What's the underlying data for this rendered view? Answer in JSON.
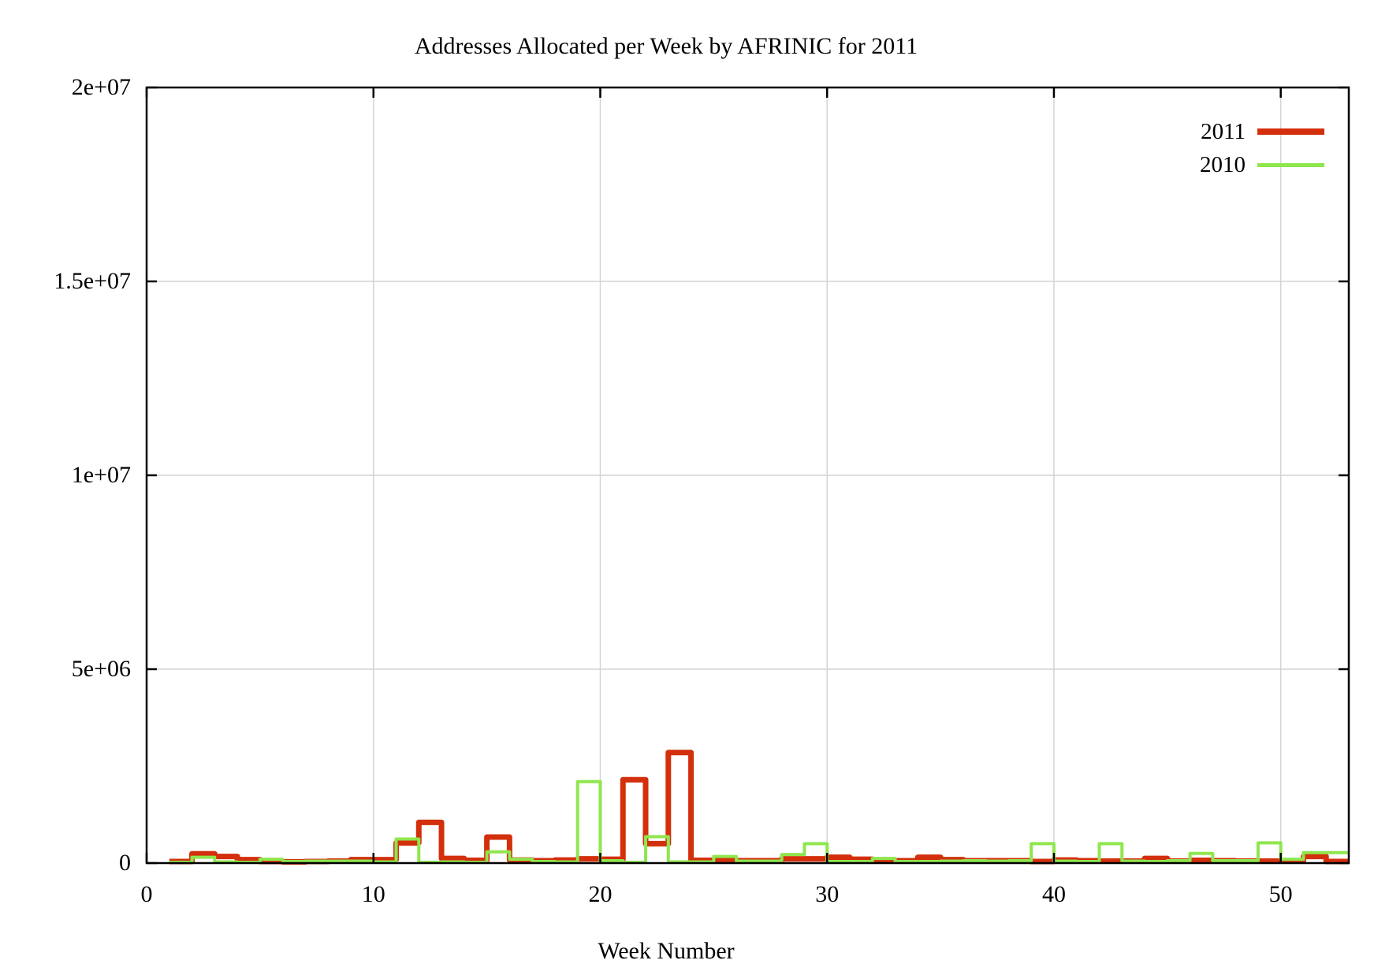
{
  "chart_data": {
    "type": "line",
    "subtype": "steps",
    "title": "Addresses Allocated per Week by AFRINIC for 2011",
    "xlabel": "Week Number",
    "ylabel": "",
    "xlim": [
      0,
      53
    ],
    "ylim": [
      0,
      20000000
    ],
    "grid": true,
    "legend_position": "top-right",
    "background": "#ffffff",
    "grid_color": "#d4d4d4",
    "border_color": "#000000",
    "xticks": [
      {
        "value": 0,
        "label": "0"
      },
      {
        "value": 10,
        "label": "10"
      },
      {
        "value": 20,
        "label": "20"
      },
      {
        "value": 30,
        "label": "30"
      },
      {
        "value": 40,
        "label": "40"
      },
      {
        "value": 50,
        "label": "50"
      }
    ],
    "yticks": [
      {
        "value": 0,
        "label": "0"
      },
      {
        "value": 5000000,
        "label": "5e+06"
      },
      {
        "value": 10000000,
        "label": "1e+07"
      },
      {
        "value": 15000000,
        "label": "1.5e+07"
      },
      {
        "value": 20000000,
        "label": "2e+07"
      }
    ],
    "weeks": [
      1,
      2,
      3,
      4,
      5,
      6,
      7,
      8,
      9,
      10,
      11,
      12,
      13,
      14,
      15,
      16,
      17,
      18,
      19,
      20,
      21,
      22,
      23,
      24,
      25,
      26,
      27,
      28,
      29,
      30,
      31,
      32,
      33,
      34,
      35,
      36,
      37,
      38,
      39,
      40,
      41,
      42,
      43,
      44,
      45,
      46,
      47,
      48,
      49,
      50,
      51,
      52
    ],
    "series": [
      {
        "name": "2011",
        "color": "#d32f0c",
        "line_width": 7,
        "values": [
          40000,
          240000,
          170000,
          90000,
          40000,
          30000,
          40000,
          50000,
          90000,
          90000,
          520000,
          1050000,
          120000,
          70000,
          670000,
          80000,
          60000,
          80000,
          110000,
          100000,
          2150000,
          500000,
          2850000,
          70000,
          80000,
          60000,
          60000,
          110000,
          110000,
          150000,
          100000,
          60000,
          60000,
          150000,
          90000,
          60000,
          60000,
          60000,
          40000,
          80000,
          60000,
          50000,
          50000,
          120000,
          50000,
          70000,
          60000,
          50000,
          50000,
          60000,
          170000,
          40000
        ]
      },
      {
        "name": "2010",
        "color": "#8fe64d",
        "line_width": 4,
        "values": [
          20000,
          150000,
          30000,
          20000,
          100000,
          40000,
          50000,
          50000,
          50000,
          30000,
          620000,
          20000,
          30000,
          20000,
          290000,
          100000,
          40000,
          30000,
          2100000,
          60000,
          20000,
          680000,
          30000,
          30000,
          170000,
          50000,
          50000,
          220000,
          500000,
          40000,
          40000,
          120000,
          40000,
          40000,
          50000,
          60000,
          50000,
          60000,
          500000,
          50000,
          40000,
          500000,
          50000,
          40000,
          60000,
          250000,
          60000,
          60000,
          520000,
          100000,
          270000,
          270000
        ]
      }
    ]
  }
}
